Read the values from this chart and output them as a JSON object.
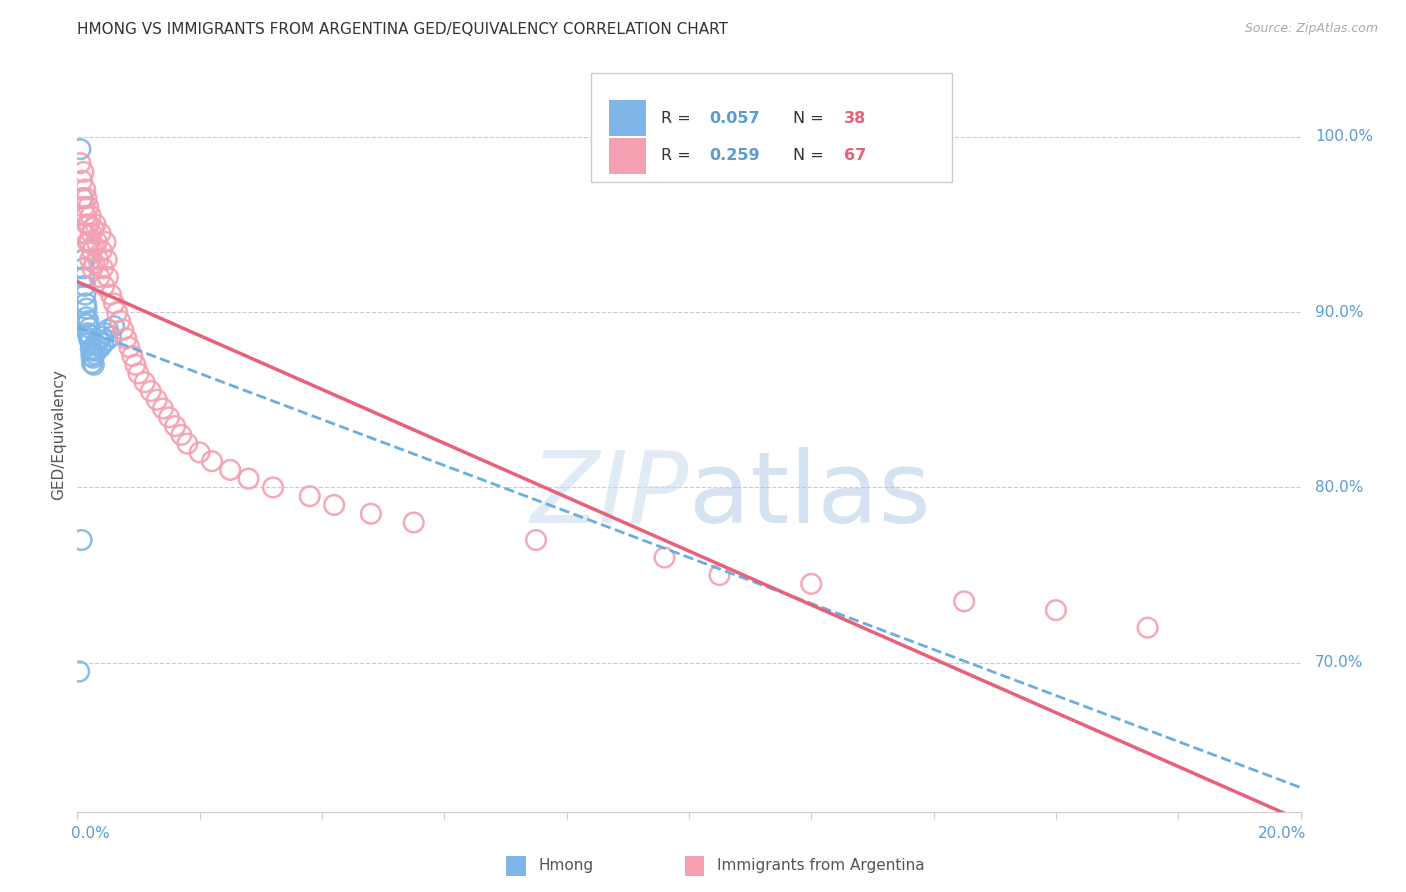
{
  "title": "HMONG VS IMMIGRANTS FROM ARGENTINA GED/EQUIVALENCY CORRELATION CHART",
  "source": "Source: ZipAtlas.com",
  "ylabel": "GED/Equivalency",
  "r_hmong": "0.057",
  "n_hmong": "38",
  "r_argentina": "0.259",
  "n_argentina": "67",
  "ytick_labels": [
    "70.0%",
    "80.0%",
    "90.0%",
    "100.0%"
  ],
  "ytick_values": [
    0.7,
    0.8,
    0.9,
    1.0
  ],
  "xlim": [
    0.0,
    0.2
  ],
  "ylim": [
    0.615,
    1.045
  ],
  "color_hmong": "#7EB6E8",
  "color_argentina": "#F4A0B0",
  "color_hmong_line": "#6AAEE0",
  "color_argentina_line": "#E8607A",
  "background_color": "#FFFFFF",
  "watermark_color": "#D8EAF8",
  "hmong_x": [
    0.0005,
    0.0008,
    0.0009,
    0.001,
    0.001,
    0.0011,
    0.0012,
    0.0013,
    0.0014,
    0.0015,
    0.0015,
    0.0016,
    0.0017,
    0.0018,
    0.0019,
    0.002,
    0.002,
    0.0021,
    0.0022,
    0.0023,
    0.0024,
    0.0025,
    0.0026,
    0.0027,
    0.0028,
    0.003,
    0.0032,
    0.0035,
    0.0038,
    0.004,
    0.0042,
    0.0045,
    0.0048,
    0.005,
    0.0055,
    0.006,
    0.0007,
    0.0003
  ],
  "hmong_y": [
    0.993,
    0.965,
    0.945,
    0.93,
    0.925,
    0.92,
    0.915,
    0.91,
    0.905,
    0.902,
    0.897,
    0.893,
    0.888,
    0.895,
    0.885,
    0.891,
    0.887,
    0.883,
    0.879,
    0.875,
    0.871,
    0.878,
    0.874,
    0.87,
    0.876,
    0.882,
    0.878,
    0.884,
    0.88,
    0.886,
    0.882,
    0.888,
    0.884,
    0.89,
    0.886,
    0.892,
    0.77,
    0.695
  ],
  "argentina_x": [
    0.0005,
    0.0008,
    0.0009,
    0.001,
    0.0011,
    0.0012,
    0.0013,
    0.0014,
    0.0015,
    0.0016,
    0.0017,
    0.0018,
    0.0019,
    0.002,
    0.0021,
    0.0022,
    0.0023,
    0.0024,
    0.0025,
    0.0026,
    0.0027,
    0.0028,
    0.003,
    0.0032,
    0.0034,
    0.0036,
    0.0038,
    0.004,
    0.0042,
    0.0044,
    0.0046,
    0.0048,
    0.005,
    0.0055,
    0.006,
    0.0065,
    0.007,
    0.0075,
    0.008,
    0.0085,
    0.009,
    0.0095,
    0.01,
    0.011,
    0.012,
    0.013,
    0.014,
    0.015,
    0.016,
    0.017,
    0.018,
    0.02,
    0.022,
    0.025,
    0.028,
    0.032,
    0.038,
    0.042,
    0.048,
    0.055,
    0.075,
    0.096,
    0.105,
    0.12,
    0.145,
    0.16,
    0.175
  ],
  "argentina_y": [
    0.985,
    0.975,
    0.965,
    0.98,
    0.96,
    0.945,
    0.97,
    0.955,
    0.965,
    0.95,
    0.94,
    0.96,
    0.95,
    0.94,
    0.93,
    0.955,
    0.945,
    0.935,
    0.925,
    0.948,
    0.938,
    0.928,
    0.95,
    0.94,
    0.93,
    0.92,
    0.945,
    0.935,
    0.925,
    0.915,
    0.94,
    0.93,
    0.92,
    0.91,
    0.905,
    0.9,
    0.895,
    0.89,
    0.885,
    0.88,
    0.875,
    0.87,
    0.865,
    0.86,
    0.855,
    0.85,
    0.845,
    0.84,
    0.835,
    0.83,
    0.825,
    0.82,
    0.815,
    0.81,
    0.805,
    0.8,
    0.795,
    0.79,
    0.785,
    0.78,
    0.77,
    0.76,
    0.75,
    0.745,
    0.735,
    0.73,
    0.72
  ]
}
